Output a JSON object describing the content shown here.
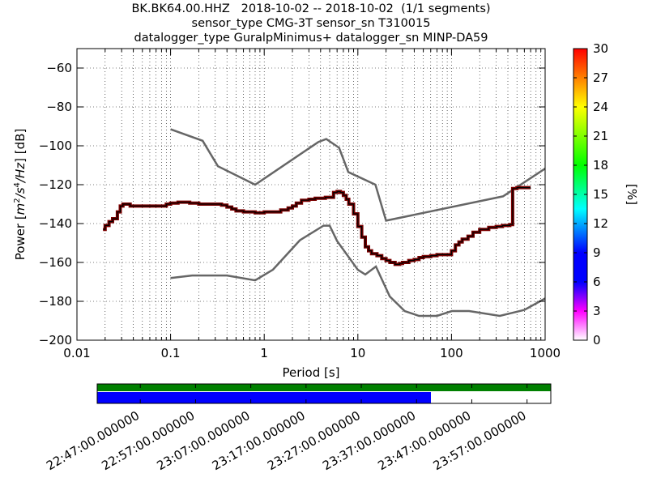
{
  "title_lines": [
    "BK.BK64.00.HHZ   2018-10-02 -- 2018-10-02  (1/1 segments)",
    "sensor_type CMG-3T sensor_sn T310015",
    "datalogger_type GuralpMinimus+ datalogger_sn MINP-DA59"
  ],
  "colors": {
    "noise_model": "#666666",
    "mode_line": "#000000",
    "mode_fill": "#7a0000",
    "coverage_green": "#008000",
    "coverage_blue": "#0000ff"
  },
  "chart_data": [
    {
      "type": "line",
      "xlabel": "Period [s]",
      "ylabel": "Power [m²/s⁴/Hz] [dB]",
      "ylabel_parts": {
        "prefix": "Power ",
        "unit": "m",
        "sup1": "2",
        "mid": "/s",
        "sup2": "4",
        "tail": "/Hz",
        "suffix": "] [dB]",
        "open": "["
      },
      "xscale": "log",
      "xlim": [
        0.01,
        1000
      ],
      "ylim": [
        -200,
        -50
      ],
      "xticks": [
        0.01,
        0.1,
        1,
        10,
        100,
        1000
      ],
      "xtick_labels": [
        "0.01",
        "0.1",
        "1",
        "10",
        "100",
        "1000"
      ],
      "yticks": [
        -200,
        -180,
        -160,
        -140,
        -120,
        -100,
        -80,
        -60
      ],
      "ytick_labels": [
        "−200",
        "−180",
        "−160",
        "−140",
        "−120",
        "−100",
        "−80",
        "−60"
      ],
      "grid": true,
      "series": [
        {
          "role": "high-noise-model",
          "x": [
            0.1,
            0.22,
            0.32,
            0.8,
            3.8,
            4.6,
            6.3,
            7.9,
            15.4,
            20,
            354.8,
            10000
          ],
          "y": [
            -91.5,
            -97.4,
            -110.5,
            -120.0,
            -98.0,
            -96.5,
            -101.0,
            -113.5,
            -120.0,
            -138.5,
            -126.0,
            -80.0
          ]
        },
        {
          "role": "low-noise-model",
          "x": [
            0.1,
            0.17,
            0.4,
            0.8,
            1.24,
            2.4,
            4.3,
            5.0,
            6.0,
            10.0,
            12.0,
            15.6,
            21.9,
            31.6,
            45.0,
            70.0,
            101.0,
            154.0,
            328.0,
            600.0,
            10000
          ],
          "y": [
            -168.0,
            -166.7,
            -166.7,
            -169.2,
            -163.7,
            -148.6,
            -141.1,
            -141.1,
            -149.0,
            -163.8,
            -166.2,
            -162.1,
            -177.5,
            -185.0,
            -187.5,
            -187.5,
            -185.0,
            -185.0,
            -187.5,
            -184.4,
            -151.9
          ]
        },
        {
          "role": "mode",
          "x": [
            0.019,
            0.02,
            0.022,
            0.024,
            0.027,
            0.029,
            0.031,
            0.034,
            0.037,
            0.04,
            0.045,
            0.05,
            0.06,
            0.07,
            0.08,
            0.09,
            0.1,
            0.12,
            0.14,
            0.16,
            0.2,
            0.25,
            0.3,
            0.35,
            0.4,
            0.45,
            0.5,
            0.6,
            0.7,
            0.8,
            1.0,
            1.2,
            1.5,
            1.8,
            2.0,
            2.2,
            2.5,
            3.0,
            3.5,
            4.0,
            4.5,
            5.0,
            5.5,
            6.0,
            6.5,
            7.0,
            7.5,
            8.0,
            9.0,
            10.0,
            11.0,
            12.0,
            13.0,
            14.0,
            16.0,
            18.0,
            20.0,
            22.0,
            25.0,
            28.0,
            30.0,
            35.0,
            40.0,
            45.0,
            50.0,
            60.0,
            70.0,
            80.0,
            90.0,
            100.0,
            110.0,
            120.0,
            130.0,
            150.0,
            170.0,
            200.0,
            250.0,
            300.0,
            350.0,
            400.0,
            420.0,
            450.0,
            500.0,
            600.0,
            700.0
          ],
          "y": [
            -143.0,
            -141.0,
            -139.0,
            -137.5,
            -134.0,
            -131.0,
            -130.0,
            -130.0,
            -131.0,
            -131.0,
            -131.0,
            -131.0,
            -131.0,
            -131.0,
            -131.0,
            -130.0,
            -129.5,
            -129.0,
            -129.0,
            -129.5,
            -130.0,
            -130.0,
            -130.0,
            -130.5,
            -131.5,
            -132.5,
            -133.5,
            -134.0,
            -134.0,
            -134.5,
            -134.0,
            -134.0,
            -133.0,
            -132.0,
            -131.0,
            -129.5,
            -128.0,
            -127.5,
            -127.0,
            -127.0,
            -126.5,
            -126.5,
            -124.0,
            -123.5,
            -124.0,
            -125.5,
            -127.5,
            -130.0,
            -135.0,
            -141.5,
            -147.0,
            -152.0,
            -154.0,
            -155.5,
            -156.5,
            -158.0,
            -159.0,
            -160.0,
            -161.0,
            -160.5,
            -160.0,
            -159.0,
            -158.5,
            -157.5,
            -157.0,
            -156.5,
            -156.0,
            -156.0,
            -156.0,
            -154.0,
            -151.0,
            -149.5,
            -148.0,
            -146.5,
            -144.5,
            -143.0,
            -142.0,
            -141.5,
            -141.0,
            -141.0,
            -140.5,
            -122.0,
            -121.5,
            -121.5,
            -121.5
          ]
        }
      ]
    },
    {
      "type": "bar",
      "role": "colorbar",
      "ylabel": "[%]",
      "ylim": [
        0,
        30
      ],
      "ticks": [
        0,
        3,
        6,
        9,
        12,
        15,
        18,
        21,
        24,
        27,
        30
      ],
      "tick_labels": [
        "0",
        "3",
        "6",
        "9",
        "12",
        "15",
        "18",
        "21",
        "24",
        "27",
        "30"
      ]
    },
    {
      "type": "bar",
      "role": "data-coverage",
      "xlim_minutes": [
        0,
        82.1
      ],
      "green_extent_minutes": [
        0,
        82.1
      ],
      "blue_extent_minutes": [
        0,
        60.4
      ],
      "tick_minutes": [
        7.8,
        17.8,
        27.8,
        37.8,
        47.8,
        57.8,
        67.8,
        77.8
      ],
      "tick_labels": [
        "22:47:00.000000",
        "22:57:00.000000",
        "23:07:00.000000",
        "23:17:00.000000",
        "23:27:00.000000",
        "23:37:00.000000",
        "23:47:00.000000",
        "23:57:00.000000"
      ]
    }
  ]
}
